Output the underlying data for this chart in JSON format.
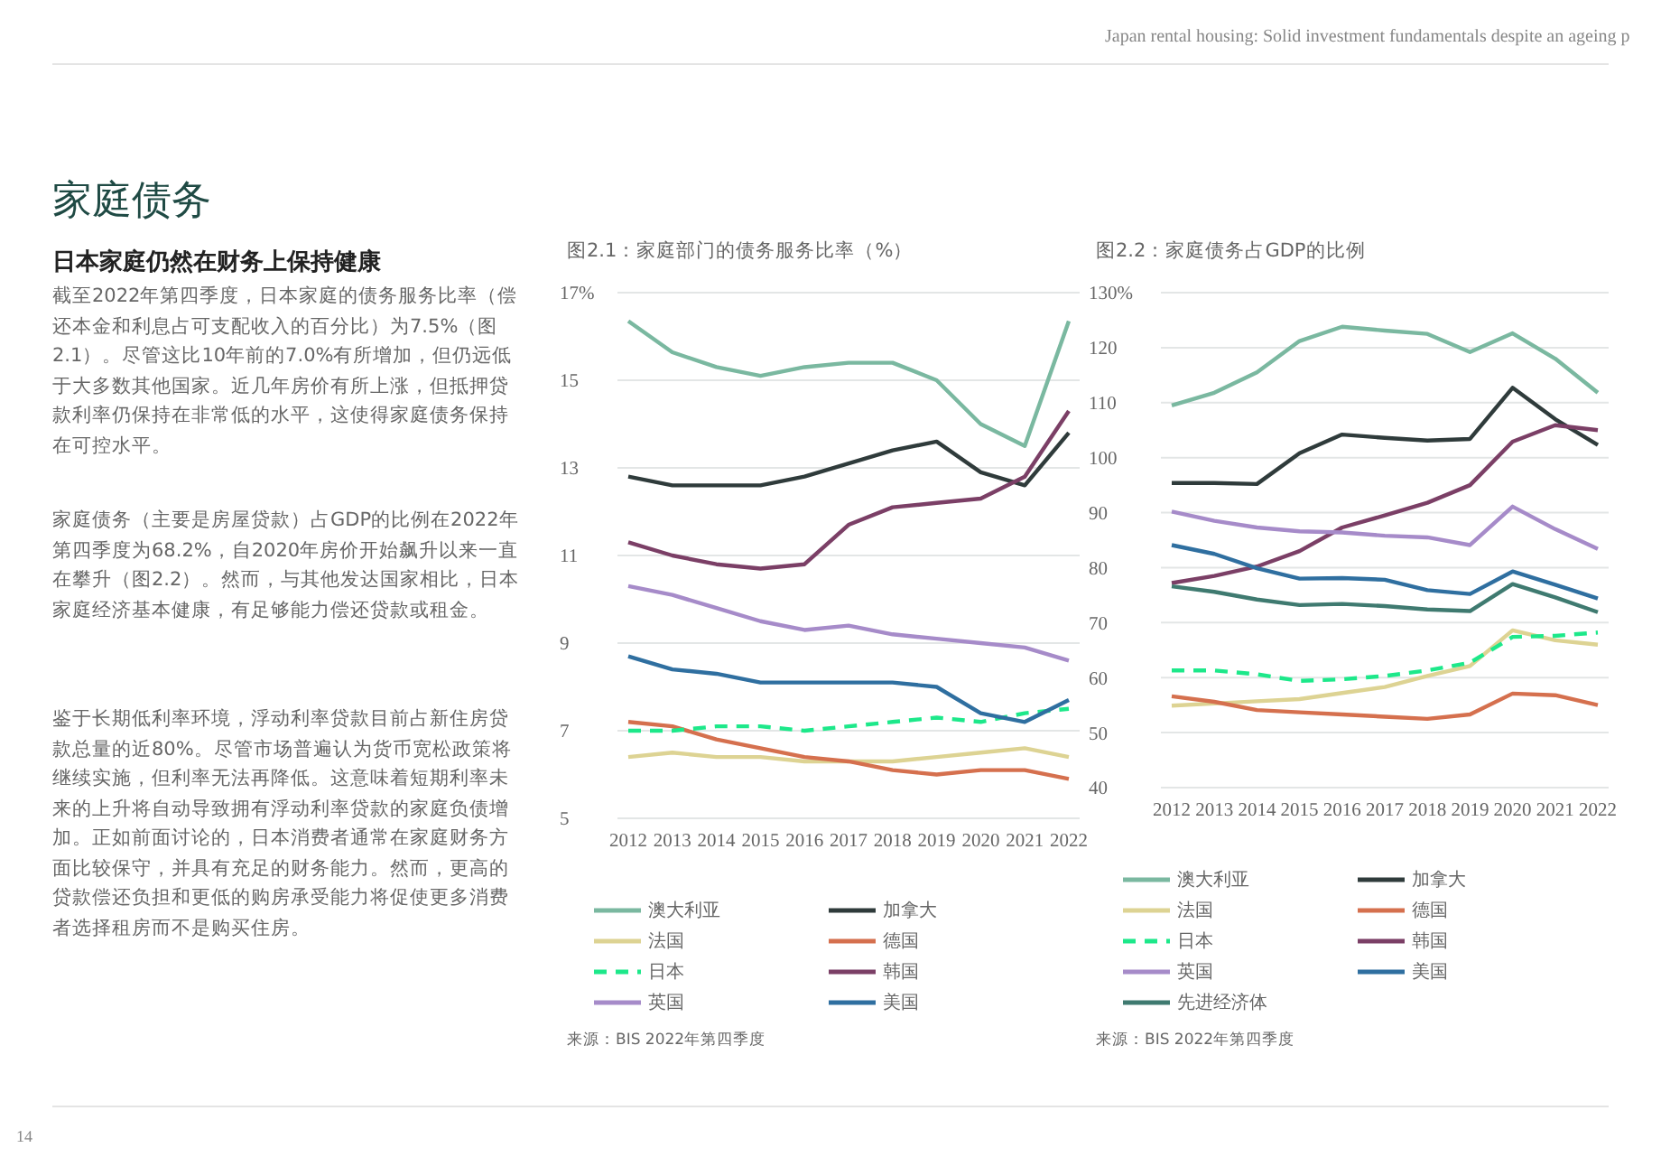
{
  "chart_data": [
    {
      "type": "other",
      "title": "家庭债务",
      "subtitle": "日本家庭仍然在财务上保持健康",
      "annotations": [
        "Japan rental housing: Solid investment fundamentals despite an ageing p",
        "截至2022年第四季度，日本家庭的债务服务比率（偿还本金和利息占可支配收入的百分比）为7.5%（图2.1）。尽管这比10年前的7.0%有所增加，但仍远低于大多数其他国家。近几年房价有所上涨，但抵押贷款利率仍保持在非常低的水平，这使得家庭债务保持在可控水平。",
        "家庭债务（主要是房屋贷款）占GDP的比例在2022年第四季度为68.2%，自2020年房价开始飙升以来一直在攀升（图2.2）。然而，与其他发达国家相比，日本家庭经济基本健康，有足够能力偿还贷款或租金。",
        "鉴于长期低利率环境，浮动利率贷款目前占新住房贷款总量的近80%。尽管市场普遍认为货币宽松政策将继续实施，但利率无法再降低。这意味着短期利率未来的上升将自动导致拥有浮动利率贷款的家庭负债增加。正如前面讨论的，日本消费者通常在家庭财务方面比较保守，并具有充足的财务能力。然而，更高的贷款偿还负担和更低的购房承受能力将促使更多消费者选择租房而不是购买住房。",
        "14"
      ]
    },
    {
      "type": "line",
      "title": "图2.1：家庭部门的债务服务比率（%）",
      "categories": [
        "2012",
        "2013",
        "2014",
        "2015",
        "2016",
        "2017",
        "2018",
        "2019",
        "2020",
        "2021",
        "2022"
      ],
      "ylim": [
        5,
        17
      ],
      "yticks": [
        5,
        7,
        9,
        11,
        13,
        15,
        {
          "value": 17,
          "label": "17%"
        }
      ],
      "grid": "y",
      "legend": "bottom",
      "marker": "none",
      "annotations": [
        "来源：BIS 2022年第四季度"
      ],
      "series": [
        {
          "name": "澳大利亚",
          "color": "#7ab8a0",
          "values": [
            16.35,
            15.64,
            15.3,
            15.1,
            15.3,
            15.4,
            15.4,
            15.0,
            14.0,
            13.5,
            16.35
          ]
        },
        {
          "name": "加拿大",
          "color": "#2f3b3b",
          "values": [
            12.8,
            12.6,
            12.6,
            12.6,
            12.8,
            13.1,
            13.4,
            13.6,
            12.9,
            12.6,
            13.8
          ]
        },
        {
          "name": "法国",
          "color": "#ddd393",
          "values": [
            6.4,
            6.5,
            6.4,
            6.4,
            6.3,
            6.3,
            6.3,
            6.4,
            6.5,
            6.6,
            6.4
          ]
        },
        {
          "name": "德国",
          "color": "#d5704e",
          "values": [
            7.2,
            7.1,
            6.8,
            6.6,
            6.4,
            6.3,
            6.1,
            6.0,
            6.1,
            6.1,
            5.9
          ]
        },
        {
          "name": "日本",
          "color": "#1de88a",
          "line_style": "dashed",
          "values": [
            7.0,
            7.0,
            7.1,
            7.1,
            7.0,
            7.1,
            7.2,
            7.3,
            7.2,
            7.4,
            7.5
          ]
        },
        {
          "name": "韩国",
          "color": "#7b3f66",
          "values": [
            11.3,
            11.0,
            10.8,
            10.7,
            10.8,
            11.7,
            12.1,
            12.2,
            12.3,
            12.8,
            14.3
          ]
        },
        {
          "name": "英国",
          "color": "#a68bc9",
          "values": [
            10.3,
            10.1,
            9.8,
            9.5,
            9.3,
            9.4,
            9.2,
            9.1,
            9.0,
            8.9,
            8.6
          ]
        },
        {
          "name": "美国",
          "color": "#2f6fa0",
          "values": [
            8.7,
            8.4,
            8.3,
            8.1,
            8.1,
            8.1,
            8.1,
            8.0,
            7.4,
            7.2,
            7.7
          ]
        }
      ]
    },
    {
      "type": "line",
      "title": "图2.2：家庭债务占GDP的比例",
      "categories": [
        "2012",
        "2013",
        "2014",
        "2015",
        "2016",
        "2017",
        "2018",
        "2019",
        "2020",
        "2021",
        "2022"
      ],
      "ylim": [
        40,
        130
      ],
      "yticks": [
        40,
        50,
        60,
        70,
        80,
        90,
        100,
        110,
        120,
        {
          "value": 130,
          "label": "130%"
        }
      ],
      "grid": "y",
      "legend": "bottom",
      "marker": "none",
      "annotations": [
        "来源：BIS 2022年第四季度"
      ],
      "series": [
        {
          "name": "澳大利亚",
          "color": "#7ab8a0",
          "values": [
            109.5,
            111.8,
            115.5,
            121.2,
            123.8,
            123.1,
            122.5,
            119.2,
            122.6,
            118,
            111.8
          ]
        },
        {
          "name": "加拿大",
          "color": "#2f3b3b",
          "values": [
            95.4,
            95.4,
            95.2,
            100.8,
            104.2,
            103.6,
            103.1,
            103.4,
            112.7,
            107,
            102.3
          ]
        },
        {
          "name": "法国",
          "color": "#ddd393",
          "values": [
            54.9,
            55.3,
            55.7,
            56.1,
            57.2,
            58.3,
            60.3,
            62.1,
            68.6,
            66.8,
            66
          ]
        },
        {
          "name": "德国",
          "color": "#d5704e",
          "values": [
            56.6,
            55.6,
            54.1,
            53.7,
            53.3,
            52.9,
            52.5,
            53.3,
            57.1,
            56.8,
            55
          ]
        },
        {
          "name": "日本",
          "color": "#1de88a",
          "line_style": "dashed",
          "values": [
            61.3,
            61.3,
            60.6,
            59.4,
            59.7,
            60.3,
            61.3,
            62.7,
            67.4,
            67.6,
            68.2
          ]
        },
        {
          "name": "韩国",
          "color": "#7b3f66",
          "values": [
            77.2,
            78.5,
            80.2,
            83,
            87.3,
            89.5,
            91.8,
            95,
            102.9,
            105.9,
            105
          ]
        },
        {
          "name": "英国",
          "color": "#a68bc9",
          "values": [
            90.2,
            88.5,
            87.3,
            86.6,
            86.4,
            85.8,
            85.5,
            84.1,
            91.1,
            87,
            83.4
          ]
        },
        {
          "name": "美国",
          "color": "#2f6fa0",
          "values": [
            84.1,
            82.5,
            79.9,
            78,
            78.1,
            77.8,
            75.9,
            75.2,
            79.3,
            76.9,
            74.4
          ]
        },
        {
          "name": "先进经济体",
          "color": "#3f7a70",
          "values": [
            76.6,
            75.6,
            74.2,
            73.2,
            73.4,
            73,
            72.4,
            72.1,
            77,
            74.6,
            71.9
          ]
        }
      ]
    }
  ]
}
